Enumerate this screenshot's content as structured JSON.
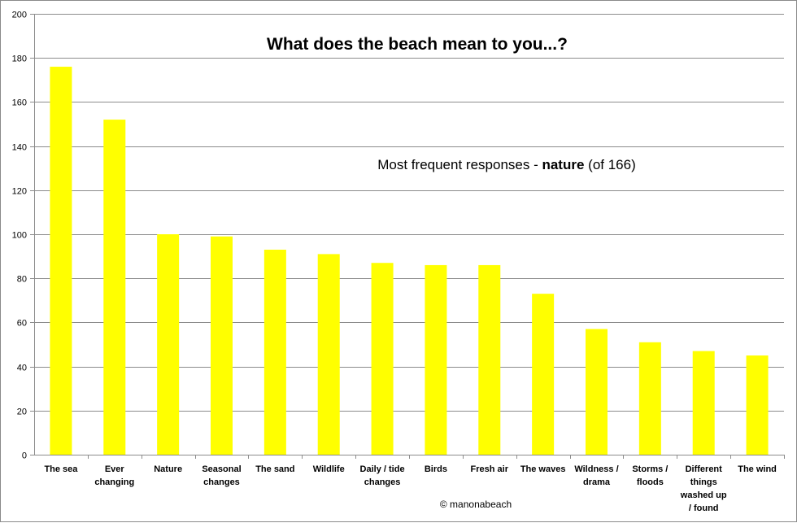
{
  "chart_data": {
    "type": "bar",
    "title": "What does the beach mean to you...?",
    "annotation": {
      "prefix": "Most frequent  responses  - ",
      "bold": "nature",
      "suffix": " (of 166)"
    },
    "credit": "© manonabeach",
    "xlabel": "",
    "ylabel": "",
    "ylim": [
      0,
      200
    ],
    "yticks": [
      0,
      20,
      40,
      60,
      80,
      100,
      120,
      140,
      160,
      180,
      200
    ],
    "grid": "horizontal",
    "legend": "none",
    "bar_color": "#ffff00",
    "categories": [
      [
        "The sea"
      ],
      [
        "Ever",
        "changing"
      ],
      [
        "Nature"
      ],
      [
        "Seasonal",
        "changes"
      ],
      [
        "The sand"
      ],
      [
        "Wildlife"
      ],
      [
        "Daily / tide",
        "changes"
      ],
      [
        "Birds"
      ],
      [
        "Fresh air"
      ],
      [
        "The waves"
      ],
      [
        "Wildness /",
        "drama"
      ],
      [
        "Storms /",
        "floods"
      ],
      [
        "Different",
        "things",
        "washed up",
        "/ found"
      ],
      [
        "The wind"
      ]
    ],
    "values": [
      176,
      152,
      100,
      99,
      93,
      91,
      87,
      86,
      86,
      73,
      57,
      51,
      47,
      45
    ]
  }
}
